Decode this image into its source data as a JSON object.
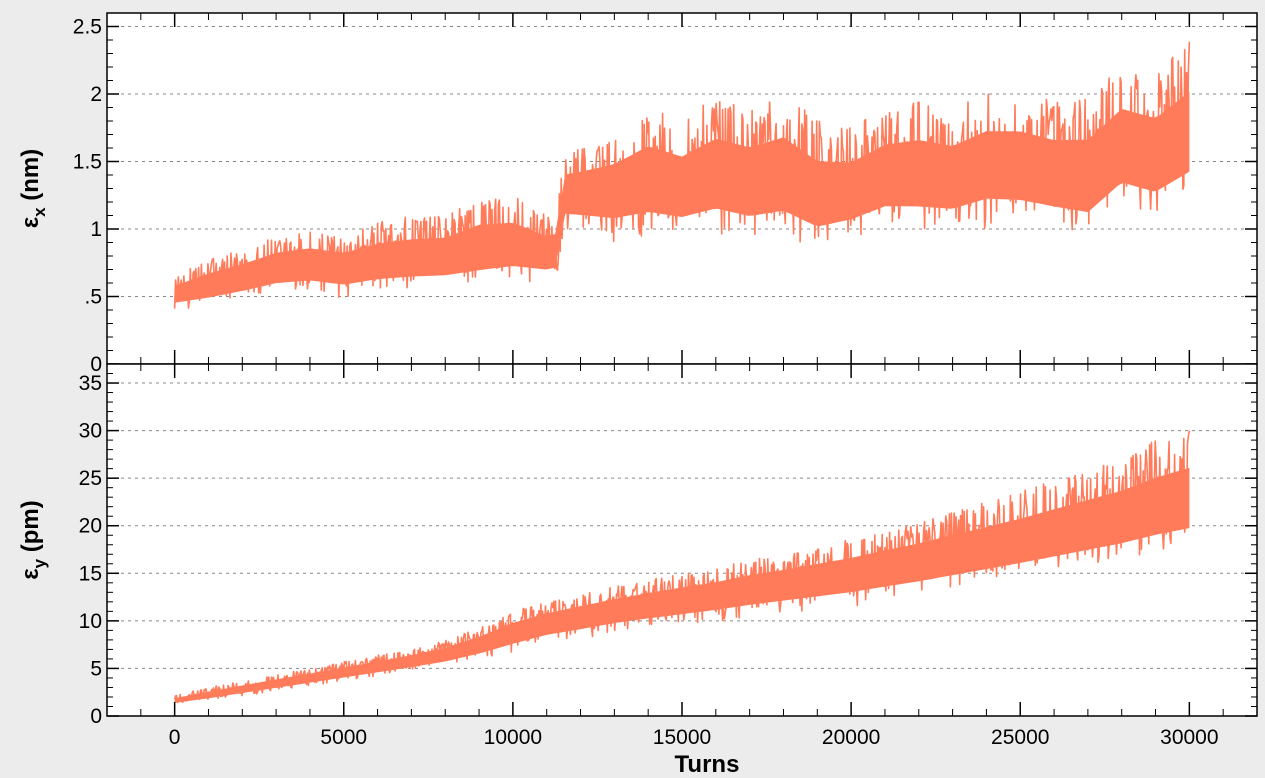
{
  "chart_data": [
    {
      "type": "line",
      "panel": "top",
      "ylabel": {
        "symbol": "ε",
        "subscript": "x",
        "unit": "(nm)"
      },
      "xlabel": "",
      "xlim": [
        -2000,
        32000
      ],
      "ylim": [
        0,
        2.6
      ],
      "yticks": [
        0,
        0.5,
        1,
        1.5,
        2,
        2.5
      ],
      "yticklabels": [
        "0",
        ".5",
        "1",
        "1.5",
        "2",
        "2.5"
      ],
      "grid": true,
      "color": "#ff7b5a",
      "series": [
        {
          "x": [
            0,
            1000,
            2000,
            3000,
            4000,
            5000,
            6000,
            7000,
            8000,
            9000,
            10000,
            11000,
            11300,
            11500,
            12000,
            13000,
            14000,
            15000,
            16000,
            17000,
            18000,
            19000,
            20000,
            21000,
            22000,
            23000,
            24000,
            25000,
            26000,
            27000,
            28000,
            29000,
            30000
          ],
          "center": [
            0.52,
            0.58,
            0.64,
            0.72,
            0.74,
            0.72,
            0.76,
            0.78,
            0.8,
            0.86,
            0.88,
            0.82,
            0.84,
            1.28,
            1.28,
            1.3,
            1.38,
            1.32,
            1.4,
            1.36,
            1.4,
            1.26,
            1.28,
            1.4,
            1.42,
            1.38,
            1.5,
            1.48,
            1.42,
            1.4,
            1.62,
            1.55,
            1.7
          ],
          "lower": [
            0.4,
            0.42,
            0.46,
            0.5,
            0.52,
            0.48,
            0.52,
            0.54,
            0.54,
            0.56,
            0.6,
            0.6,
            0.62,
            0.98,
            0.96,
            0.9,
            0.92,
            0.9,
            0.95,
            0.88,
            0.92,
            0.82,
            0.9,
            0.98,
            0.96,
            0.96,
            1.0,
            1.0,
            0.96,
            0.9,
            1.12,
            1.05,
            1.2
          ],
          "upper": [
            0.65,
            0.78,
            0.86,
            0.95,
            1.0,
            0.95,
            1.05,
            1.1,
            1.1,
            1.24,
            1.25,
            1.1,
            1.12,
            1.55,
            1.6,
            1.7,
            1.9,
            1.8,
            2.0,
            1.9,
            2.02,
            1.8,
            1.75,
            1.9,
            1.95,
            1.9,
            2.0,
            2.02,
            1.95,
            1.98,
            2.22,
            2.15,
            2.4
          ]
        }
      ]
    },
    {
      "type": "line",
      "panel": "bottom",
      "ylabel": {
        "symbol": "ε",
        "subscript": "y",
        "unit": "(pm)"
      },
      "xlabel": "Turns",
      "xlim": [
        -2000,
        32000
      ],
      "ylim": [
        0,
        37
      ],
      "xticks": [
        0,
        5000,
        10000,
        15000,
        20000,
        25000,
        30000
      ],
      "xticklabels": [
        "0",
        "5000",
        "10000",
        "15000",
        "20000",
        "25000",
        "30000"
      ],
      "yticks": [
        0,
        5,
        10,
        15,
        20,
        25,
        30,
        35
      ],
      "yticklabels": [
        "0",
        "5",
        "10",
        "15",
        "20",
        "25",
        "30",
        "35"
      ],
      "grid": true,
      "color": "#ff7b5a",
      "series": [
        {
          "x": [
            0,
            1000,
            2000,
            3000,
            4000,
            5000,
            6000,
            7000,
            8000,
            9000,
            10000,
            11000,
            12000,
            13000,
            14000,
            15000,
            16000,
            17000,
            18000,
            19000,
            20000,
            21000,
            22000,
            23000,
            24000,
            25000,
            26000,
            27000,
            28000,
            29000,
            30000
          ],
          "center": [
            1.6,
            2.2,
            2.8,
            3.4,
            4.0,
            4.6,
            5.2,
            5.8,
            6.5,
            7.5,
            8.8,
            9.8,
            10.5,
            11.2,
            11.8,
            12.3,
            12.8,
            13.5,
            14.0,
            14.5,
            15.0,
            15.7,
            16.3,
            17.0,
            17.7,
            18.4,
            19.2,
            20.0,
            20.8,
            21.8,
            22.5
          ],
          "lower": [
            1.2,
            1.6,
            2.1,
            2.6,
            3.1,
            3.6,
            4.1,
            4.6,
            5.1,
            5.8,
            6.6,
            7.5,
            8.0,
            8.6,
            9.0,
            9.4,
            9.8,
            10.2,
            10.6,
            11.0,
            11.4,
            11.9,
            12.4,
            13.0,
            13.6,
            14.2,
            14.8,
            15.4,
            16.0,
            16.8,
            17.5
          ],
          "upper": [
            2.2,
            3.0,
            3.7,
            4.4,
            5.0,
            5.7,
            6.4,
            7.1,
            8.0,
            9.3,
            11.0,
            12.0,
            12.8,
            13.6,
            14.3,
            15.0,
            15.6,
            16.4,
            17.0,
            17.8,
            18.6,
            19.5,
            20.4,
            21.5,
            22.5,
            23.6,
            24.8,
            26.0,
            27.2,
            29.0,
            30.5
          ]
        }
      ]
    }
  ]
}
